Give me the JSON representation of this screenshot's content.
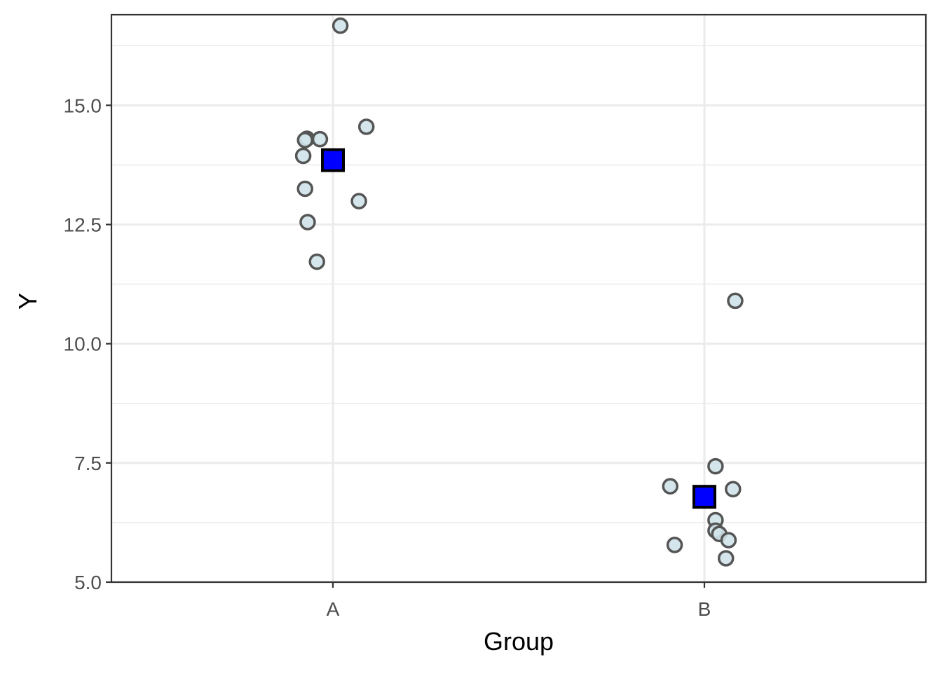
{
  "chart_data": {
    "type": "scatter",
    "title": "",
    "xlabel": "Group",
    "ylabel": "Y",
    "categories": [
      "A",
      "B"
    ],
    "ylim": [
      5.0,
      16.9
    ],
    "yticks": [
      5.0,
      7.5,
      10.0,
      12.5,
      15.0
    ],
    "ytick_labels": [
      "5.0",
      "7.5",
      "10.0",
      "12.5",
      "15.0"
    ],
    "grid": true,
    "legend": "none",
    "series": [
      {
        "marker": "circle",
        "fill_color": "#cfe3ea",
        "stroke_color": "#555555",
        "points": [
          {
            "category": "A",
            "jitter": 0.02,
            "y": 16.67
          },
          {
            "category": "A",
            "jitter": 0.09,
            "y": 14.55
          },
          {
            "category": "A",
            "jitter": -0.07,
            "y": 14.3
          },
          {
            "category": "A",
            "jitter": -0.035,
            "y": 14.29
          },
          {
            "category": "A",
            "jitter": -0.075,
            "y": 14.27
          },
          {
            "category": "A",
            "jitter": -0.08,
            "y": 13.94
          },
          {
            "category": "A",
            "jitter": -0.075,
            "y": 13.25
          },
          {
            "category": "A",
            "jitter": 0.07,
            "y": 12.99
          },
          {
            "category": "A",
            "jitter": -0.068,
            "y": 12.55
          },
          {
            "category": "A",
            "jitter": -0.043,
            "y": 11.72
          },
          {
            "category": "B",
            "jitter": 0.083,
            "y": 10.9
          },
          {
            "category": "B",
            "jitter": 0.03,
            "y": 7.43
          },
          {
            "category": "B",
            "jitter": -0.092,
            "y": 7.01
          },
          {
            "category": "B",
            "jitter": 0.077,
            "y": 6.95
          },
          {
            "category": "B",
            "jitter": 0.03,
            "y": 6.3
          },
          {
            "category": "B",
            "jitter": 0.03,
            "y": 6.08
          },
          {
            "category": "B",
            "jitter": 0.04,
            "y": 6.01
          },
          {
            "category": "B",
            "jitter": 0.065,
            "y": 5.88
          },
          {
            "category": "B",
            "jitter": -0.08,
            "y": 5.78
          },
          {
            "category": "B",
            "jitter": 0.058,
            "y": 5.5
          }
        ]
      },
      {
        "marker": "square",
        "fill_color": "#0000ff",
        "stroke_color": "#000000",
        "points": [
          {
            "category": "A",
            "jitter": 0,
            "y": 13.85
          },
          {
            "category": "B",
            "jitter": 0,
            "y": 6.79
          }
        ]
      }
    ]
  }
}
